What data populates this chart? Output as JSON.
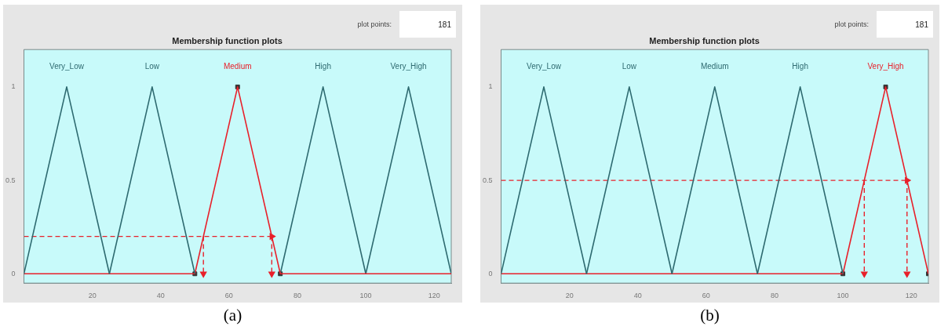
{
  "chart_data": [
    {
      "type": "line",
      "title": "Membership function plots",
      "annotations": [
        "plot points:",
        "181",
        "(a)"
      ],
      "xlim": [
        0,
        125
      ],
      "ylim": [
        -0.05,
        1.2
      ],
      "xticks": [
        20,
        40,
        60,
        80,
        100,
        120
      ],
      "yticks": [
        0,
        0.5,
        1
      ],
      "grid": false,
      "legend": false,
      "marker": "none",
      "series": [
        {
          "name": "Very_Low",
          "color": "#2e6a70",
          "x": [
            0,
            12.5,
            25
          ],
          "values": [
            0,
            1,
            0
          ]
        },
        {
          "name": "Low",
          "color": "#2e6a70",
          "x": [
            25,
            37.5,
            50
          ],
          "values": [
            0,
            1,
            0
          ]
        },
        {
          "name": "Medium",
          "color": "#e8202a",
          "x": [
            0,
            50,
            62.5,
            75,
            125
          ],
          "values": [
            0,
            0,
            1,
            0,
            0
          ]
        },
        {
          "name": "High",
          "color": "#2e6a70",
          "x": [
            75,
            87.5,
            100
          ],
          "values": [
            0,
            1,
            0
          ]
        },
        {
          "name": "Very_High",
          "color": "#2e6a70",
          "x": [
            100,
            112.5,
            125
          ],
          "values": [
            0,
            1,
            0
          ]
        },
        {
          "type": "line",
          "color": "#e8202a",
          "line_style": "dashed",
          "marker": "triangle",
          "x": [
            0,
            72.5
          ],
          "values": [
            0.2,
            0.2
          ]
        },
        {
          "type": "line",
          "color": "#e8202a",
          "line_style": "dashed",
          "marker": "triangle",
          "x": [
            52.5,
            52.5
          ],
          "values": [
            0.2,
            0
          ]
        },
        {
          "type": "line",
          "color": "#e8202a",
          "line_style": "dashed",
          "marker": "triangle",
          "x": [
            72.5,
            72.5
          ],
          "values": [
            0.2,
            0
          ]
        },
        {
          "type": "scatter",
          "color": "#333333",
          "marker": "square",
          "x": [
            50,
            62.5,
            75
          ],
          "values": [
            0,
            1,
            0
          ]
        }
      ]
    },
    {
      "type": "line",
      "title": "Membership function plots",
      "annotations": [
        "plot points:",
        "181",
        "(b)"
      ],
      "xlim": [
        0,
        125
      ],
      "ylim": [
        -0.05,
        1.2
      ],
      "xticks": [
        20,
        40,
        60,
        80,
        100,
        120
      ],
      "yticks": [
        0,
        0.5,
        1
      ],
      "grid": false,
      "legend": false,
      "marker": "none",
      "series": [
        {
          "name": "Very_Low",
          "color": "#2e6a70",
          "x": [
            0,
            12.5,
            25
          ],
          "values": [
            0,
            1,
            0
          ]
        },
        {
          "name": "Low",
          "color": "#2e6a70",
          "x": [
            25,
            37.5,
            50
          ],
          "values": [
            0,
            1,
            0
          ]
        },
        {
          "name": "Medium",
          "color": "#2e6a70",
          "x": [
            50,
            62.5,
            75
          ],
          "values": [
            0,
            1,
            0
          ]
        },
        {
          "name": "High",
          "color": "#2e6a70",
          "x": [
            75,
            87.5,
            100
          ],
          "values": [
            0,
            1,
            0
          ]
        },
        {
          "name": "Very_High",
          "color": "#e8202a",
          "x": [
            0,
            100,
            112.5,
            125
          ],
          "values": [
            0,
            0,
            1,
            0
          ]
        },
        {
          "type": "line",
          "color": "#e8202a",
          "line_style": "dashed",
          "marker": "triangle",
          "x": [
            0,
            118.75
          ],
          "values": [
            0.5,
            0.5
          ]
        },
        {
          "type": "line",
          "color": "#e8202a",
          "line_style": "dashed",
          "marker": "triangle",
          "x": [
            106.25,
            106.25
          ],
          "values": [
            0.5,
            0
          ]
        },
        {
          "type": "line",
          "color": "#e8202a",
          "line_style": "dashed",
          "marker": "triangle",
          "x": [
            118.75,
            118.75
          ],
          "values": [
            0.5,
            0
          ]
        },
        {
          "type": "scatter",
          "color": "#333333",
          "marker": "square",
          "x": [
            100,
            112.5,
            125
          ],
          "values": [
            0,
            1,
            0
          ]
        }
      ]
    }
  ]
}
